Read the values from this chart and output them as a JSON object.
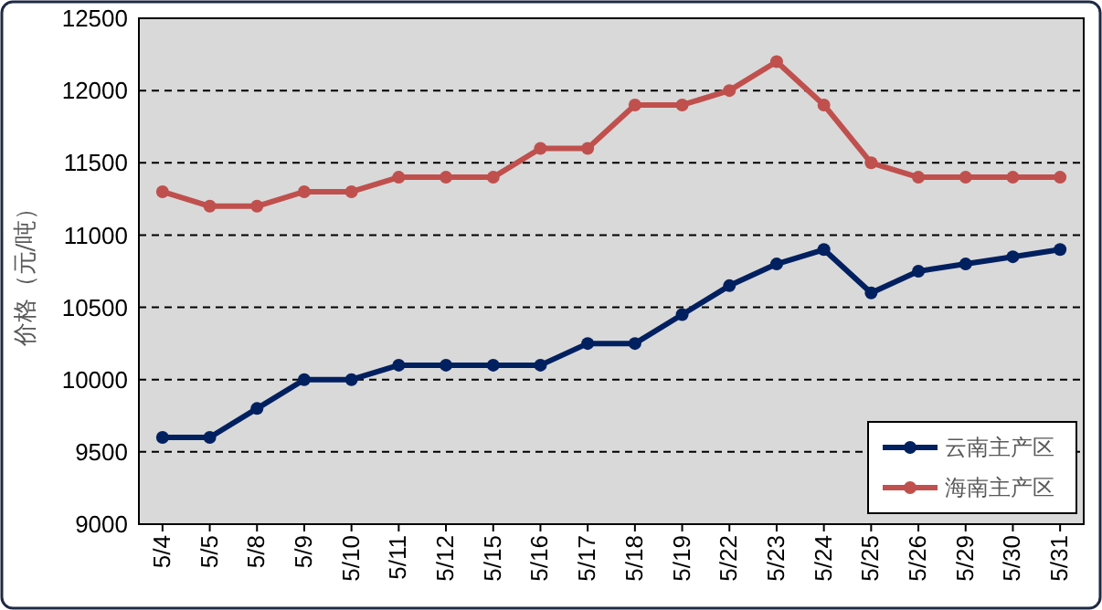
{
  "chart_data": {
    "type": "line",
    "ylabel": "价格（元/吨）",
    "categories": [
      "5/4",
      "5/5",
      "5/8",
      "5/9",
      "5/10",
      "5/11",
      "5/12",
      "5/15",
      "5/16",
      "5/17",
      "5/18",
      "5/19",
      "5/22",
      "5/23",
      "5/24",
      "5/25",
      "5/26",
      "5/29",
      "5/30",
      "5/31"
    ],
    "series": [
      {
        "name": "云南主产区",
        "color": "#002060",
        "values": [
          9600,
          9600,
          9800,
          10000,
          10000,
          10100,
          10100,
          10100,
          10100,
          10250,
          10250,
          10450,
          10650,
          10800,
          10900,
          10600,
          10750,
          10800,
          10850,
          10900
        ]
      },
      {
        "name": "海南主产区",
        "color": "#c0504d",
        "values": [
          11300,
          11200,
          11200,
          11300,
          11300,
          11400,
          11400,
          11400,
          11600,
          11600,
          11900,
          11900,
          12000,
          12200,
          11900,
          11500,
          11400,
          11400,
          11400,
          11400
        ]
      }
    ],
    "ylim": [
      9000,
      12500
    ],
    "yticks": [
      9000,
      9500,
      10000,
      10500,
      11000,
      11500,
      12000,
      12500
    ],
    "grid": "y",
    "legend": "bottom right",
    "marker": "circle",
    "line_style": "solid"
  }
}
